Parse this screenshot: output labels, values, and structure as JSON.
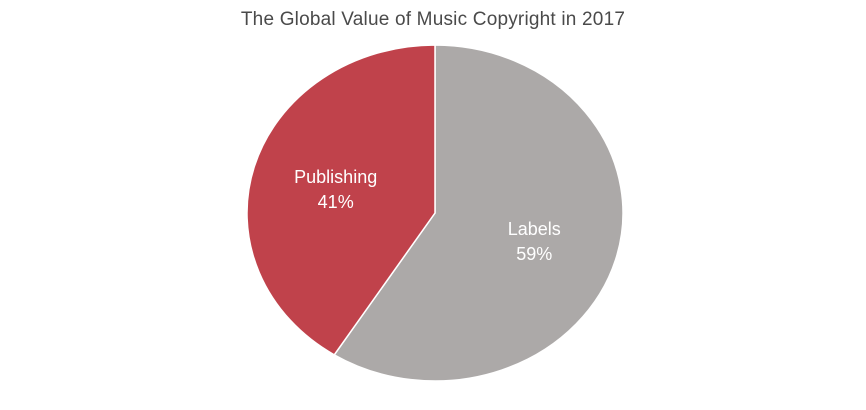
{
  "chart_data": {
    "type": "pie",
    "title": "The Global Value of Music Copyright in 2017",
    "slices": [
      {
        "label": "Publishing",
        "value": 41,
        "value_label": "41%",
        "color": "#c0424b"
      },
      {
        "label": "Labels",
        "value": 59,
        "value_label": "59%",
        "color": "#aca9a8"
      }
    ],
    "legend": "none",
    "edge_color": "#ffffff"
  }
}
